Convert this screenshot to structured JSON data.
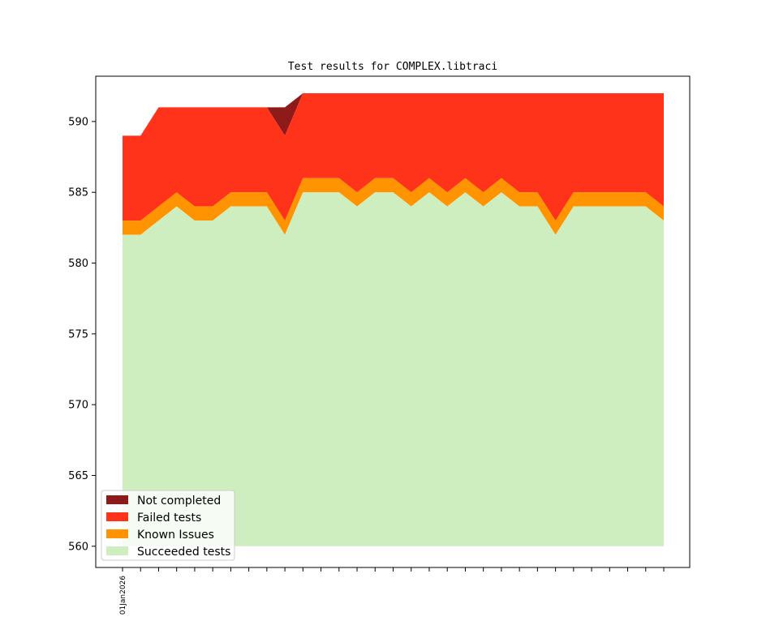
{
  "chart_data": {
    "type": "area",
    "stacked": true,
    "title": "Test results for COMPLEX.libtraci",
    "xlabel": "",
    "ylabel": "",
    "ylim": [
      558.5,
      593.2
    ],
    "yticks": [
      560,
      565,
      570,
      575,
      580,
      585,
      590
    ],
    "xtick_labels": [
      "01Jan2026"
    ],
    "x": [
      0,
      1,
      2,
      3,
      4,
      5,
      6,
      7,
      8,
      9,
      10,
      11,
      12,
      13,
      14,
      15,
      16,
      17,
      18,
      19,
      20,
      21,
      22,
      23,
      24,
      25,
      26,
      27,
      28,
      29,
      30
    ],
    "baseline": 560,
    "grid": false,
    "legend_position": "lower-left",
    "series": [
      {
        "name": "Succeeded tests",
        "color": "#cfeec0",
        "values": [
          582,
          582,
          583,
          584,
          583,
          583,
          584,
          584,
          584,
          582,
          585,
          585,
          585,
          584,
          585,
          585,
          584,
          585,
          584,
          585,
          584,
          585,
          584,
          584,
          582,
          584,
          584,
          584,
          584,
          584,
          583
        ]
      },
      {
        "name": "Known Issues",
        "color": "#ff9400",
        "values": [
          583,
          583,
          584,
          585,
          584,
          584,
          585,
          585,
          585,
          583,
          586,
          586,
          586,
          585,
          586,
          586,
          585,
          586,
          585,
          586,
          585,
          586,
          585,
          585,
          583,
          585,
          585,
          585,
          585,
          585,
          584
        ]
      },
      {
        "name": "Failed tests",
        "color": "#ff331a",
        "values": [
          589,
          589,
          591,
          591,
          591,
          591,
          591,
          591,
          591,
          589,
          592,
          592,
          592,
          592,
          592,
          592,
          592,
          592,
          592,
          592,
          592,
          592,
          592,
          592,
          592,
          592,
          592,
          592,
          592,
          592,
          592
        ]
      },
      {
        "name": "Not completed",
        "color": "#8f1a1a",
        "values": [
          589,
          589,
          591,
          591,
          591,
          591,
          591,
          591,
          591,
          591,
          592,
          592,
          592,
          592,
          592,
          592,
          592,
          592,
          592,
          592,
          592,
          592,
          592,
          592,
          592,
          592,
          592,
          592,
          592,
          592,
          592
        ]
      }
    ],
    "legend": [
      "Not completed",
      "Failed tests",
      "Known Issues",
      "Succeeded tests"
    ]
  }
}
